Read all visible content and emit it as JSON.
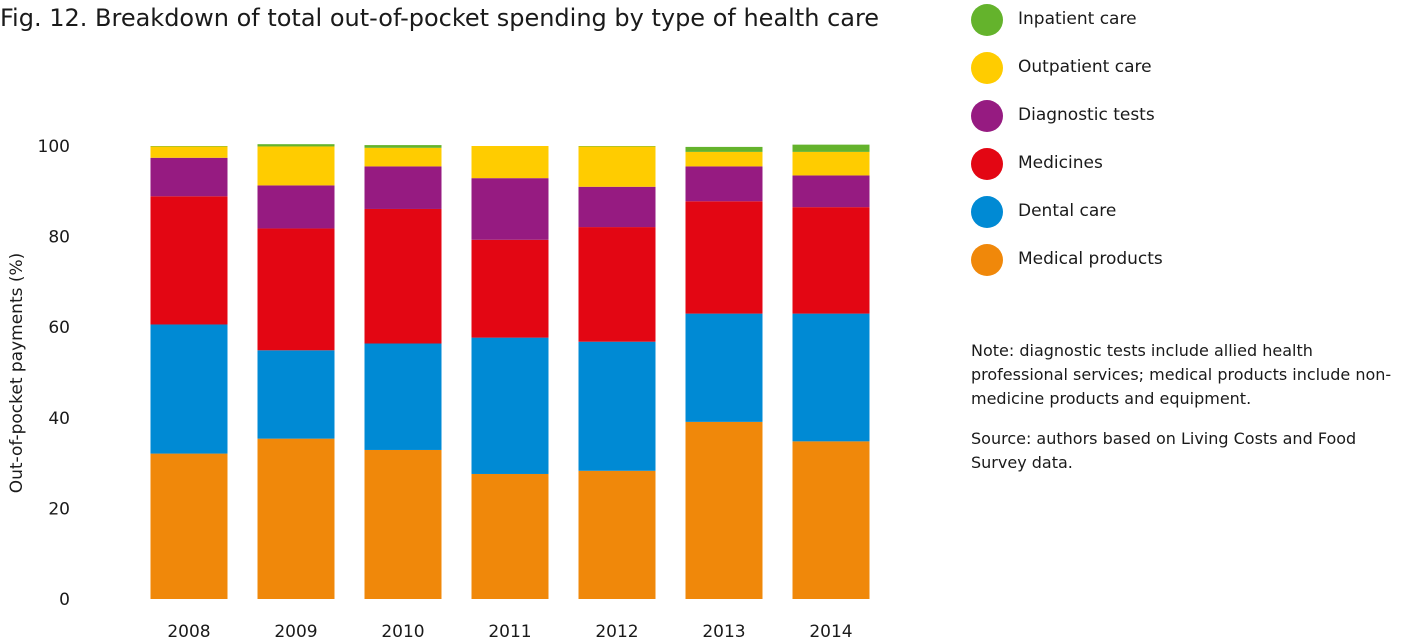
{
  "title": "Fig. 12. Breakdown of total out-of-pocket spending by type of health care",
  "note": "Note: diagnostic tests include allied health professional services; medical products include non-medicine products and equipment.",
  "source": "Source: authors based on Living Costs and Food Survey data.",
  "chart_data": {
    "type": "bar",
    "stacked": true,
    "title": "Fig. 12. Breakdown of total out-of-pocket spending by type of health care",
    "xlabel": "",
    "ylabel": "Out-of-pocket payments (%)",
    "ylim": [
      0,
      100
    ],
    "yticks": [
      0,
      20,
      40,
      60,
      80,
      100
    ],
    "categories": [
      "2008",
      "2009",
      "2010",
      "2011",
      "2012",
      "2013",
      "2014"
    ],
    "legend_position": "right",
    "grid": false,
    "series": [
      {
        "name": "Medical products",
        "color": "#f0880a",
        "values": [
          32.1,
          35.4,
          32.9,
          27.6,
          28.3,
          39.1,
          34.8
        ]
      },
      {
        "name": "Dental care",
        "color": "#008ad4",
        "values": [
          28.5,
          19.5,
          23.5,
          30.1,
          28.5,
          23.9,
          28.2
        ]
      },
      {
        "name": "Medicines",
        "color": "#e30613",
        "values": [
          28.3,
          26.9,
          29.7,
          21.6,
          25.3,
          24.8,
          23.5
        ]
      },
      {
        "name": "Diagnostic tests",
        "color": "#961b81",
        "values": [
          8.5,
          9.5,
          9.4,
          13.6,
          8.9,
          7.7,
          7.0
        ]
      },
      {
        "name": "Outpatient care",
        "color": "#ffcc00",
        "values": [
          2.5,
          8.6,
          4.1,
          7.1,
          8.9,
          3.2,
          5.2
        ]
      },
      {
        "name": "Inpatient care",
        "color": "#64b32c",
        "values": [
          0.1,
          0.5,
          0.6,
          0.0,
          0.1,
          1.1,
          1.6
        ]
      }
    ]
  }
}
